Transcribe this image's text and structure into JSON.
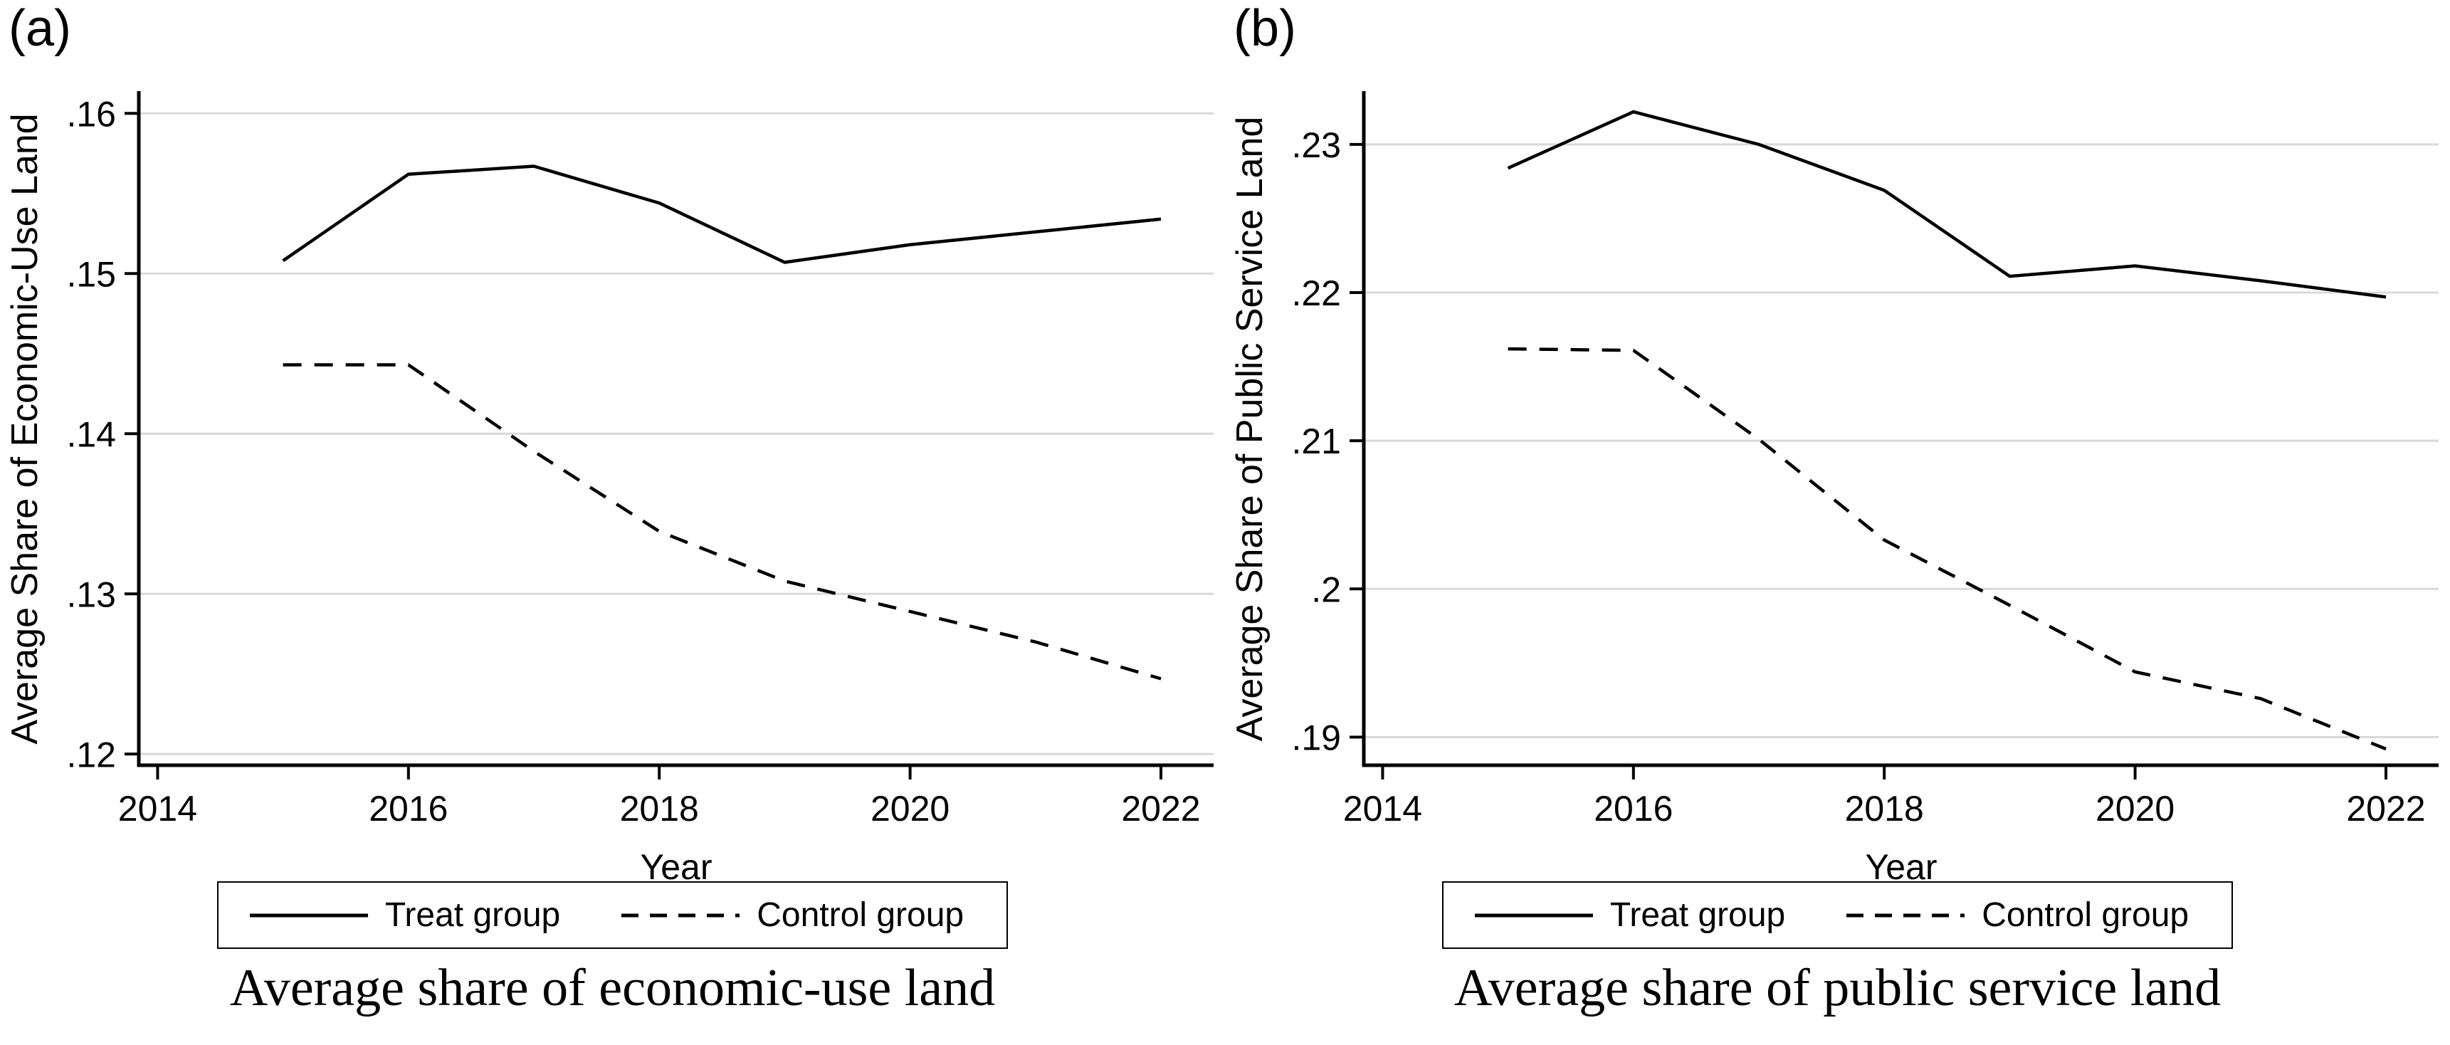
{
  "figure": {
    "background": "#ffffff",
    "text_color": "#000000",
    "grid_color": "#d9d9d9",
    "line_color": "#000000",
    "panels": [
      {
        "corner_label": "(a)",
        "caption": "Average share of economic-use land"
      },
      {
        "corner_label": "(b)",
        "caption": "Average share of public service land"
      }
    ]
  },
  "chart_data": [
    {
      "type": "line",
      "title": "Average share of economic-use land",
      "panel_label": "(a)",
      "xlabel": "Year",
      "ylabel": "Average Share of Economic-Use Land",
      "x": [
        2015,
        2016,
        2017,
        2018,
        2019,
        2020,
        2021,
        2022
      ],
      "series": [
        {
          "name": "Treat group",
          "style": "solid",
          "values": [
            0.1508,
            0.1562,
            0.1567,
            0.1544,
            0.1507,
            0.1518,
            0.1526,
            0.1534
          ]
        },
        {
          "name": "Control group",
          "style": "dashed",
          "values": [
            0.1443,
            0.1443,
            0.1389,
            0.1339,
            0.1308,
            0.1289,
            0.127,
            0.1247
          ]
        }
      ],
      "xticks": [
        2014,
        2016,
        2018,
        2020,
        2022
      ],
      "xtick_labels": [
        "2014",
        "2016",
        "2018",
        "2020",
        "2022"
      ],
      "yticks": [
        0.12,
        0.13,
        0.14,
        0.15,
        0.16
      ],
      "ytick_labels": [
        ".12",
        ".13",
        ".14",
        ".15",
        ".16"
      ],
      "xlim": [
        2013.85,
        2022.42
      ],
      "ylim": [
        0.1193,
        0.1613
      ],
      "grid": true,
      "legend_position": "bottom"
    },
    {
      "type": "line",
      "title": "Average share of public service land",
      "panel_label": "(b)",
      "xlabel": "Year",
      "ylabel": "Average Share of Public Service Land",
      "x": [
        2015,
        2016,
        2017,
        2018,
        2019,
        2020,
        2021,
        2022
      ],
      "series": [
        {
          "name": "Treat group",
          "style": "solid",
          "values": [
            0.2284,
            0.2322,
            0.23,
            0.2269,
            0.2211,
            0.2218,
            0.2208,
            0.2197
          ]
        },
        {
          "name": "Control group",
          "style": "dashed",
          "values": [
            0.2162,
            0.2161,
            0.2101,
            0.2033,
            0.1989,
            0.1944,
            0.1926,
            0.1892
          ]
        }
      ],
      "xticks": [
        2014,
        2016,
        2018,
        2020,
        2022
      ],
      "xtick_labels": [
        "2014",
        "2016",
        "2018",
        "2020",
        "2022"
      ],
      "yticks": [
        0.19,
        0.2,
        0.21,
        0.22,
        0.23
      ],
      "ytick_labels": [
        ".19",
        ".2",
        ".21",
        ".22",
        ".23"
      ],
      "xlim": [
        2013.85,
        2022.42
      ],
      "ylim": [
        0.1881,
        0.2335
      ],
      "grid": true,
      "legend_position": "bottom"
    }
  ]
}
